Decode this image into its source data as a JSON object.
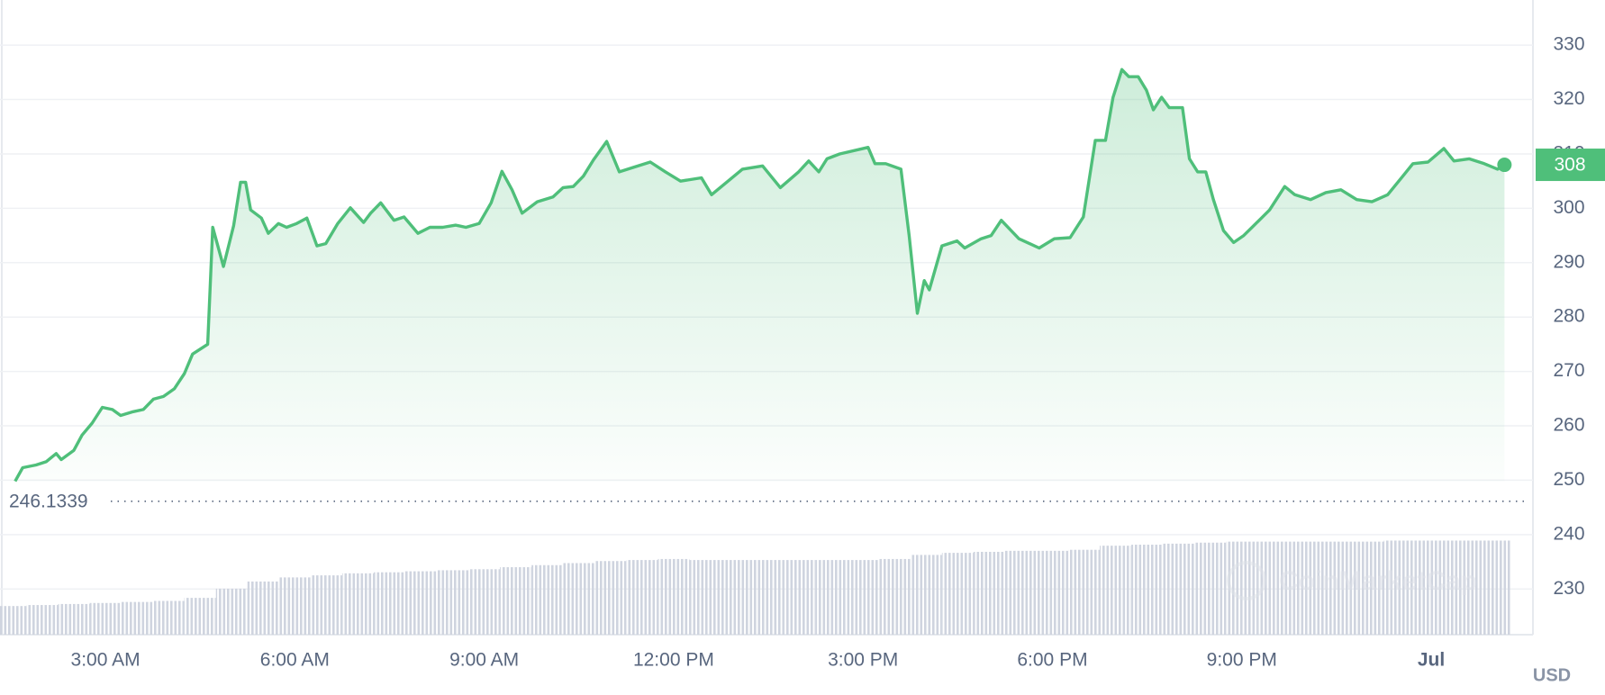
{
  "chart_data": {
    "type": "line",
    "x": [
      1.57,
      1.69,
      1.9,
      2.06,
      2.22,
      2.3,
      2.5,
      2.63,
      2.79,
      2.95,
      3.11,
      3.24,
      3.44,
      3.6,
      3.76,
      3.92,
      4.09,
      4.25,
      4.38,
      4.62,
      4.7,
      4.87,
      5.03,
      5.14,
      5.22,
      5.3,
      5.47,
      5.58,
      5.74,
      5.87,
      6.03,
      6.19,
      6.35,
      6.49,
      6.68,
      6.88,
      7.09,
      7.2,
      7.36,
      7.57,
      7.73,
      7.95,
      8.14,
      8.34,
      8.55,
      8.71,
      8.92,
      9.11,
      9.28,
      9.44,
      9.6,
      9.84,
      10.09,
      10.25,
      10.41,
      10.57,
      10.73,
      10.94,
      11.14,
      11.38,
      11.63,
      11.87,
      12.11,
      12.44,
      12.6,
      12.84,
      13.09,
      13.41,
      13.69,
      13.98,
      14.14,
      14.3,
      14.43,
      14.63,
      15.08,
      15.19,
      15.36,
      15.6,
      15.73,
      15.86,
      15.97,
      16.05,
      16.25,
      16.49,
      16.61,
      16.87,
      17.03,
      17.19,
      17.47,
      17.79,
      18.03,
      18.28,
      18.49,
      18.68,
      18.84,
      18.96,
      19.1,
      19.21,
      19.36,
      19.49,
      19.6,
      19.73,
      19.85,
      20.06,
      20.17,
      20.3,
      20.43,
      20.55,
      20.71,
      20.87,
      21.03,
      21.24,
      21.44,
      21.68,
      21.84,
      22.09,
      22.33,
      22.57,
      22.82,
      23.06,
      23.31,
      23.55,
      23.71,
      23.95,
      24.2,
      24.36,
      24.6,
      24.84,
      25.05,
      25.16
    ],
    "values": [
      249.8,
      252.3,
      252.8,
      253.4,
      254.9,
      253.8,
      255.5,
      258.3,
      260.5,
      263.4,
      263.0,
      261.9,
      262.6,
      263.0,
      264.9,
      265.4,
      266.8,
      269.6,
      273.2,
      275.0,
      296.5,
      289.3,
      296.8,
      304.8,
      304.8,
      299.7,
      298.2,
      295.4,
      297.2,
      296.5,
      297.2,
      298.2,
      293.1,
      293.5,
      297.2,
      300.1,
      297.4,
      299.1,
      301.0,
      297.8,
      298.4,
      295.4,
      296.5,
      296.5,
      296.9,
      296.5,
      297.2,
      301.0,
      306.8,
      303.4,
      299.1,
      301.2,
      302.1,
      303.8,
      304.0,
      305.9,
      308.9,
      312.3,
      306.7,
      307.6,
      308.5,
      306.7,
      305.0,
      305.6,
      302.5,
      304.8,
      307.2,
      307.8,
      303.8,
      306.7,
      308.7,
      306.7,
      309.1,
      310.0,
      311.2,
      308.2,
      308.2,
      307.2,
      295.0,
      280.7,
      286.7,
      285.0,
      293.1,
      294.0,
      292.7,
      294.4,
      295.0,
      297.8,
      294.4,
      292.7,
      294.4,
      294.6,
      298.4,
      312.5,
      312.5,
      320.4,
      325.5,
      324.2,
      324.2,
      321.7,
      318.1,
      320.4,
      318.5,
      318.5,
      309.1,
      306.7,
      306.7,
      301.6,
      295.9,
      293.7,
      295.0,
      297.4,
      299.7,
      304.0,
      302.5,
      301.6,
      302.9,
      303.4,
      301.6,
      301.2,
      302.5,
      305.9,
      308.2,
      308.5,
      311.0,
      308.7,
      309.1,
      308.2,
      307.2,
      308
    ],
    "color": "#4fbf7a",
    "xlim": [
      1.33,
      25.54
    ],
    "xticks": [
      {
        "value": 3,
        "label": "3:00 AM"
      },
      {
        "value": 6,
        "label": "6:00 AM"
      },
      {
        "value": 9,
        "label": "9:00 AM"
      },
      {
        "value": 12,
        "label": "12:00 PM"
      },
      {
        "value": 15,
        "label": "3:00 PM"
      },
      {
        "value": 18,
        "label": "6:00 PM"
      },
      {
        "value": 21,
        "label": "9:00 PM"
      },
      {
        "value": 24,
        "label": "Jul"
      }
    ],
    "ylim": [
      221.6,
      338.3
    ],
    "yticks": [
      230,
      240,
      250,
      260,
      270,
      280,
      290,
      300,
      310,
      320,
      330
    ],
    "grid": true,
    "reference_line": 246.1339,
    "currency": "USD",
    "watermark": "CoinMarketCap",
    "volume": {
      "x": [
        1.5,
        2,
        2.5,
        3,
        3.5,
        4,
        4.5,
        5,
        5.5,
        6,
        6.5,
        7,
        7.5,
        8,
        8.5,
        9,
        9.5,
        10,
        10.5,
        11,
        11.5,
        12,
        12.5,
        13,
        13.5,
        14,
        14.5,
        15,
        15.5,
        16,
        16.5,
        17,
        17.5,
        18,
        18.5,
        19,
        19.5,
        20,
        20.5,
        21,
        21.5,
        22,
        22.5,
        23,
        23.5,
        24,
        24.5,
        25
      ],
      "values": [
        28,
        29,
        30,
        31,
        32,
        33,
        36,
        45,
        52,
        56,
        58,
        60,
        61,
        62,
        63,
        64,
        66,
        68,
        70,
        72,
        73,
        74,
        73,
        73,
        73,
        73,
        73,
        73,
        74,
        78,
        80,
        81,
        82,
        82,
        83,
        87,
        88,
        89,
        90,
        91,
        91,
        91,
        91,
        91,
        92,
        92,
        92,
        92
      ],
      "ylim": [
        0,
        100
      ],
      "color": "#cfd4df"
    }
  }
}
